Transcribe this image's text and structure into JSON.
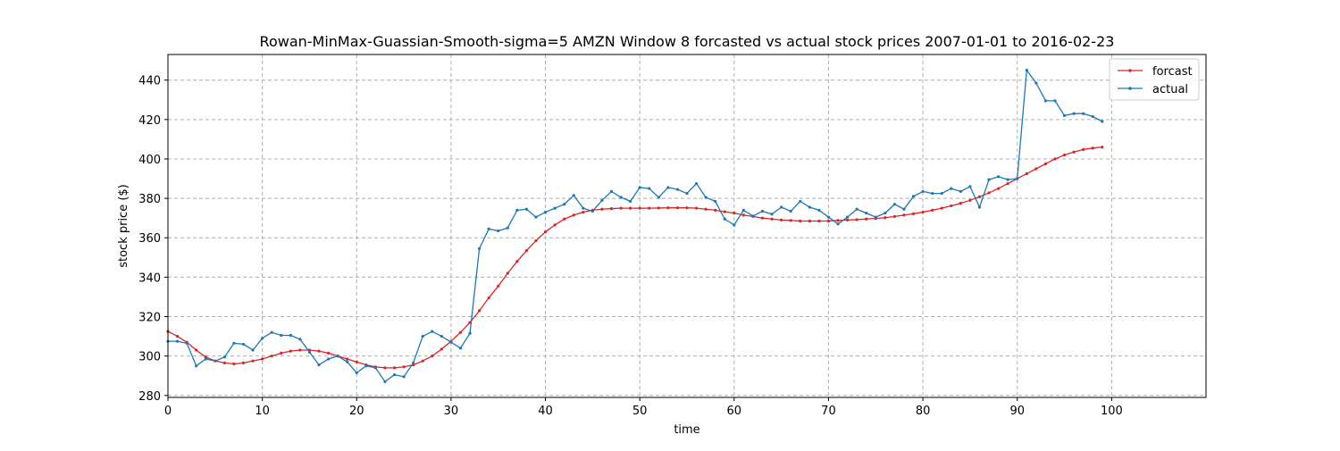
{
  "chart_data": {
    "type": "line",
    "title": "Rowan-MinMax-Guassian-Smooth-sigma=5 AMZN Window 8 forcasted vs actual stock prices 2007-01-01 to 2016-02-23",
    "xlabel": "time",
    "ylabel": "stock price ($)",
    "xlim": [
      0,
      110
    ],
    "ylim": [
      279,
      453
    ],
    "x_ticks": [
      0,
      10,
      20,
      30,
      40,
      50,
      60,
      70,
      80,
      90,
      100
    ],
    "y_ticks": [
      280,
      300,
      320,
      340,
      360,
      380,
      400,
      420,
      440
    ],
    "grid": true,
    "legend_position": "top-right",
    "series": [
      {
        "name": "forcast",
        "color": "#d62728",
        "values": [
          312.5,
          310,
          307,
          303,
          299.5,
          297.5,
          296.5,
          296,
          296.5,
          297.5,
          298.5,
          300,
          301.5,
          302.5,
          303,
          303,
          302.5,
          301.5,
          300,
          298.5,
          297,
          295.5,
          294.5,
          294,
          294,
          294.5,
          295.5,
          297.5,
          300,
          303.5,
          307.5,
          312,
          317,
          323,
          329.5,
          335.5,
          342,
          348,
          353.5,
          358.5,
          363,
          366.5,
          369.5,
          371.5,
          373,
          374,
          374.5,
          374.8,
          375,
          375,
          375,
          375,
          375.1,
          375.2,
          375.2,
          375.2,
          375,
          374.5,
          374,
          373.2,
          372.5,
          371.5,
          370.8,
          370,
          369.5,
          369,
          368.8,
          368.5,
          368.5,
          368.5,
          368.5,
          368.8,
          369,
          369.2,
          369.5,
          369.8,
          370.2,
          370.8,
          371.5,
          372.2,
          373,
          374,
          375,
          376.2,
          377.5,
          379,
          380.8,
          382.8,
          385,
          387.5,
          390,
          392.5,
          395,
          397.5,
          400,
          402,
          403.5,
          404.8,
          405.5,
          406
        ]
      },
      {
        "name": "actual",
        "color": "#1f77b4",
        "values": [
          307.5,
          307.5,
          306.5,
          295,
          298.5,
          297.5,
          299.5,
          306.5,
          306,
          303,
          309,
          312,
          310.5,
          310.5,
          308.5,
          302,
          295.5,
          298.5,
          300,
          297,
          291.5,
          295,
          294,
          287,
          290.5,
          289.5,
          296.5,
          310,
          312.5,
          310,
          307,
          304,
          311.5,
          354.5,
          364.5,
          363.5,
          365,
          374,
          374.5,
          370.5,
          373,
          375,
          377,
          381.5,
          375,
          373.5,
          379,
          383.5,
          380.5,
          378.5,
          385.5,
          385,
          380.5,
          385.5,
          384.5,
          382.5,
          387.5,
          380.5,
          378.5,
          369.5,
          366.5,
          374,
          371,
          373.5,
          372,
          375.5,
          373.5,
          378.5,
          375.5,
          374,
          370.5,
          367,
          370.5,
          374.5,
          372.5,
          370.5,
          372.5,
          377,
          374.5,
          381,
          383.5,
          382.5,
          382.5,
          385,
          383.5,
          386,
          375.5,
          389.5,
          391,
          389.5,
          390,
          445,
          438.5,
          429.5,
          429.5,
          422,
          423,
          423,
          421.5,
          419
        ]
      }
    ]
  }
}
